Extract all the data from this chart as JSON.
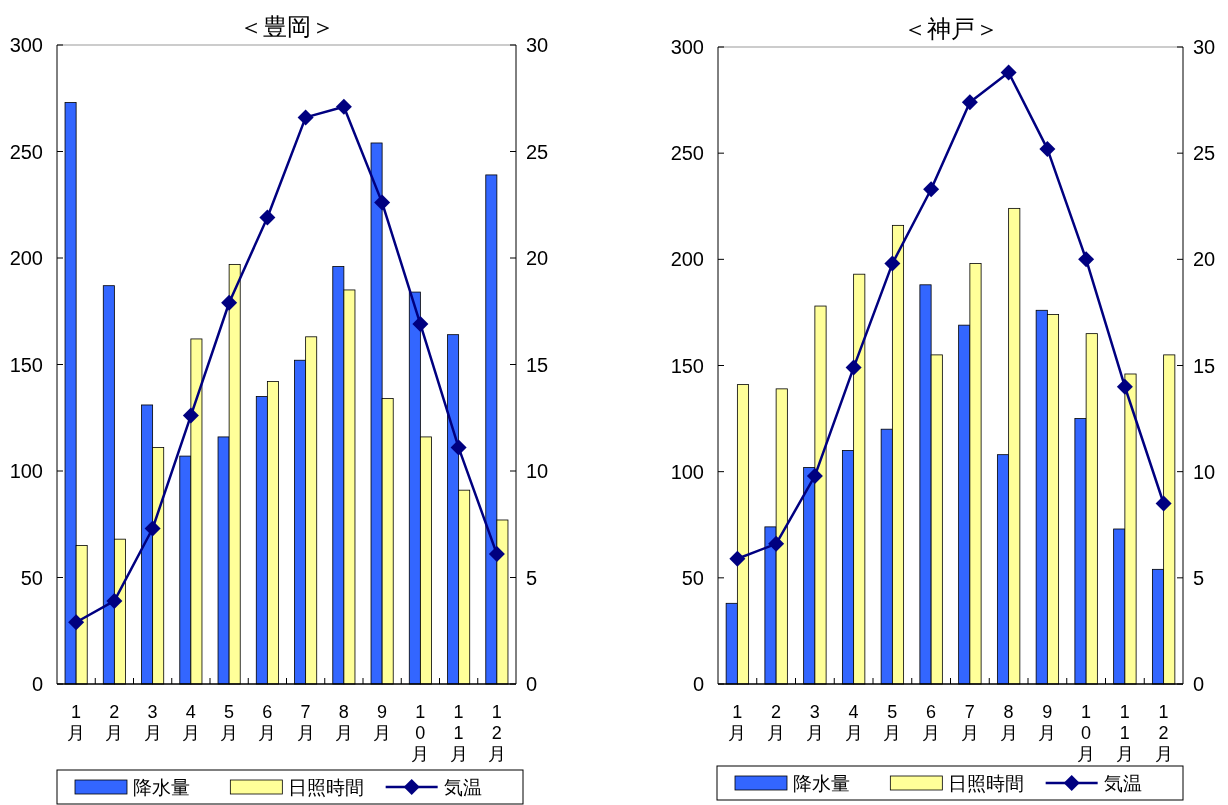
{
  "chart_data": [
    {
      "type": "bar",
      "title": "＜豊岡＞",
      "categories": [
        "1月",
        "2月",
        "3月",
        "4月",
        "5月",
        "6月",
        "7月",
        "8月",
        "9月",
        "10月",
        "11月",
        "12月"
      ],
      "series": [
        {
          "name": "降水量",
          "color": "#3366ff",
          "values": [
            273,
            187,
            131,
            107,
            116,
            135,
            152,
            196,
            254,
            184,
            164,
            239
          ]
        },
        {
          "name": "日照時間",
          "color": "#ffff99",
          "values": [
            65,
            68,
            111,
            162,
            197,
            142,
            163,
            185,
            134,
            116,
            91,
            77
          ]
        },
        {
          "name": "気温",
          "color": "#000080",
          "type": "line",
          "axis": "y2",
          "marker": "diamond",
          "values": [
            2.9,
            3.9,
            7.3,
            12.6,
            17.9,
            21.9,
            26.6,
            27.1,
            22.6,
            16.9,
            11.1,
            6.1
          ]
        }
      ],
      "ylim": [
        0,
        300
      ],
      "yticks": [
        0,
        50,
        100,
        150,
        200,
        250,
        300
      ],
      "y2lim": [
        0,
        30
      ],
      "y2ticks": [
        0,
        5,
        10,
        15,
        20,
        25,
        30
      ],
      "grid": false,
      "legend": "bottom"
    },
    {
      "type": "bar",
      "title": "＜神戸＞",
      "categories": [
        "1月",
        "2月",
        "3月",
        "4月",
        "5月",
        "6月",
        "7月",
        "8月",
        "9月",
        "10月",
        "11月",
        "12月"
      ],
      "series": [
        {
          "name": "降水量",
          "color": "#3366ff",
          "values": [
            38,
            74,
            102,
            110,
            120,
            188,
            169,
            108,
            176,
            125,
            73,
            54
          ]
        },
        {
          "name": "日照時間",
          "color": "#ffff99",
          "values": [
            141,
            139,
            178,
            193,
            216,
            155,
            198,
            224,
            174,
            165,
            146,
            155
          ]
        },
        {
          "name": "気温",
          "color": "#000080",
          "type": "line",
          "axis": "y2",
          "marker": "diamond",
          "values": [
            5.9,
            6.6,
            9.8,
            14.9,
            19.8,
            23.3,
            27.4,
            28.8,
            25.2,
            20.0,
            14.0,
            8.5
          ]
        }
      ],
      "ylim": [
        0,
        300
      ],
      "yticks": [
        0,
        50,
        100,
        150,
        200,
        250,
        300
      ],
      "y2lim": [
        0,
        30
      ],
      "y2ticks": [
        0,
        5,
        10,
        15,
        20,
        25,
        30
      ],
      "grid": false,
      "legend": "bottom"
    }
  ]
}
